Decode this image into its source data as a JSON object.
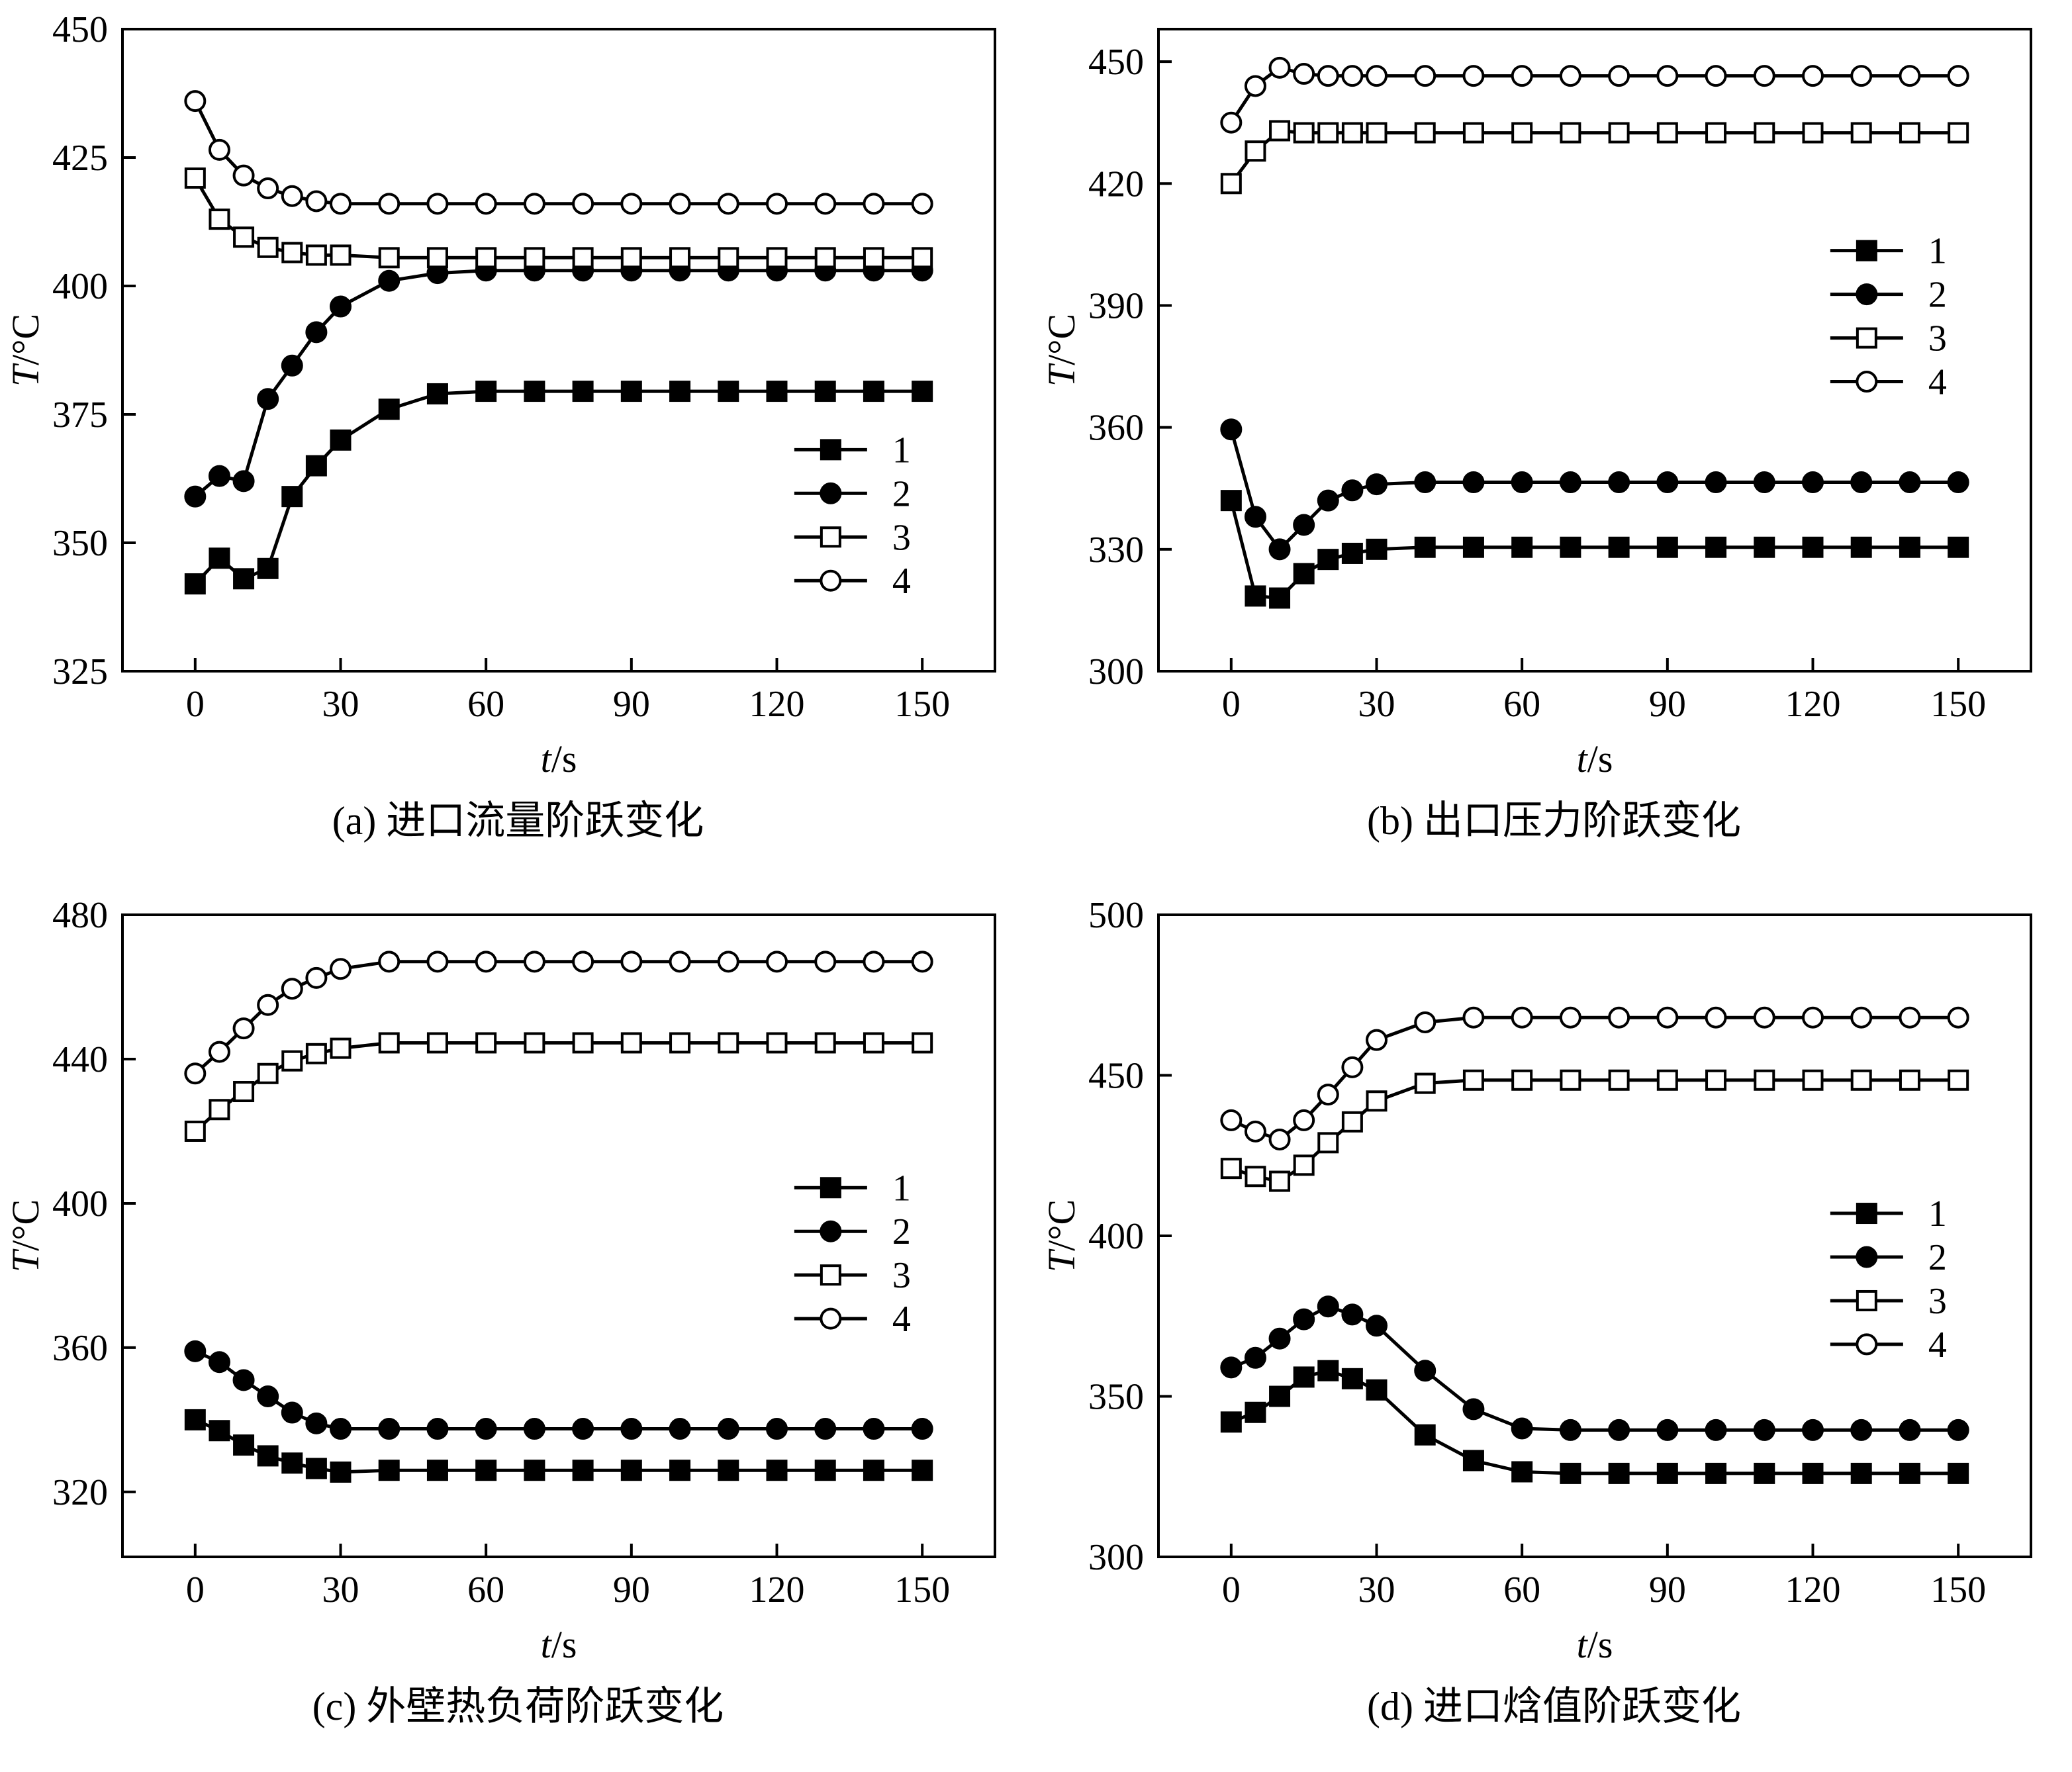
{
  "figure": {
    "background": "#ffffff",
    "ink": "#000000"
  },
  "chart_data": [
    {
      "id": "a",
      "type": "line",
      "caption": "(a) 进口流量阶跃变化",
      "xlabel": "t/s",
      "ylabel": "T/°C",
      "xlim": [
        -15,
        165
      ],
      "ylim": [
        325,
        450
      ],
      "xticks": [
        0,
        30,
        60,
        90,
        120,
        150
      ],
      "yticks": [
        325,
        350,
        375,
        400,
        425,
        450
      ],
      "grid": false,
      "legend": {
        "position": "right-lower",
        "x": 0.77,
        "y": 0.655,
        "dy": 0.068
      },
      "x": [
        0,
        5,
        10,
        15,
        20,
        25,
        30,
        40,
        50,
        60,
        70,
        80,
        90,
        100,
        110,
        120,
        130,
        140,
        150
      ],
      "series": [
        {
          "name": "1",
          "marker": "square-filled",
          "values": [
            342,
            347,
            343,
            345,
            359,
            365,
            370,
            376,
            379,
            379.5,
            379.5,
            379.5,
            379.5,
            379.5,
            379.5,
            379.5,
            379.5,
            379.5,
            379.5
          ]
        },
        {
          "name": "2",
          "marker": "circle-filled",
          "values": [
            359,
            363,
            362,
            378,
            384.5,
            391,
            396,
            401,
            402.5,
            403,
            403,
            403,
            403,
            403,
            403,
            403,
            403,
            403,
            403
          ]
        },
        {
          "name": "3",
          "marker": "square-open",
          "values": [
            421,
            413,
            409.5,
            407.5,
            406.5,
            406,
            406,
            405.5,
            405.5,
            405.5,
            405.5,
            405.5,
            405.5,
            405.5,
            405.5,
            405.5,
            405.5,
            405.5,
            405.5
          ]
        },
        {
          "name": "4",
          "marker": "circle-open",
          "values": [
            436,
            426.5,
            421.5,
            419,
            417.5,
            416.5,
            416,
            416,
            416,
            416,
            416,
            416,
            416,
            416,
            416,
            416,
            416,
            416,
            416
          ]
        }
      ]
    },
    {
      "id": "b",
      "type": "line",
      "caption": "(b) 出口压力阶跃变化",
      "xlabel": "t/s",
      "ylabel": "T/°C",
      "xlim": [
        -15,
        165
      ],
      "ylim": [
        300,
        458
      ],
      "xticks": [
        0,
        30,
        60,
        90,
        120,
        150
      ],
      "yticks": [
        300,
        330,
        360,
        390,
        420,
        450
      ],
      "grid": false,
      "legend": {
        "position": "right-upper",
        "x": 0.77,
        "y": 0.345,
        "dy": 0.068
      },
      "x": [
        0,
        5,
        10,
        15,
        20,
        25,
        30,
        40,
        50,
        60,
        70,
        80,
        90,
        100,
        110,
        120,
        130,
        140,
        150
      ],
      "series": [
        {
          "name": "1",
          "marker": "square-filled",
          "values": [
            342,
            318.5,
            318,
            324,
            327.5,
            329,
            330,
            330.5,
            330.5,
            330.5,
            330.5,
            330.5,
            330.5,
            330.5,
            330.5,
            330.5,
            330.5,
            330.5,
            330.5
          ]
        },
        {
          "name": "2",
          "marker": "circle-filled",
          "values": [
            359.5,
            338,
            330,
            336,
            342,
            344.5,
            346,
            346.5,
            346.5,
            346.5,
            346.5,
            346.5,
            346.5,
            346.5,
            346.5,
            346.5,
            346.5,
            346.5,
            346.5
          ]
        },
        {
          "name": "3",
          "marker": "square-open",
          "values": [
            420,
            428,
            433,
            432.5,
            432.5,
            432.5,
            432.5,
            432.5,
            432.5,
            432.5,
            432.5,
            432.5,
            432.5,
            432.5,
            432.5,
            432.5,
            432.5,
            432.5,
            432.5
          ]
        },
        {
          "name": "4",
          "marker": "circle-open",
          "values": [
            435,
            444,
            448.5,
            447,
            446.5,
            446.5,
            446.5,
            446.5,
            446.5,
            446.5,
            446.5,
            446.5,
            446.5,
            446.5,
            446.5,
            446.5,
            446.5,
            446.5,
            446.5
          ]
        }
      ]
    },
    {
      "id": "c",
      "type": "line",
      "caption": "(c) 外壁热负荷阶跃变化",
      "xlabel": "t/s",
      "ylabel": "T/°C",
      "xlim": [
        -15,
        165
      ],
      "ylim": [
        302,
        480
      ],
      "xticks": [
        0,
        30,
        60,
        90,
        120,
        150
      ],
      "yticks": [
        320,
        360,
        400,
        440,
        480
      ],
      "grid": false,
      "legend": {
        "position": "right-middle",
        "x": 0.77,
        "y": 0.425,
        "dy": 0.068
      },
      "x": [
        0,
        5,
        10,
        15,
        20,
        25,
        30,
        40,
        50,
        60,
        70,
        80,
        90,
        100,
        110,
        120,
        130,
        140,
        150
      ],
      "series": [
        {
          "name": "1",
          "marker": "square-filled",
          "values": [
            340,
            337,
            333,
            330,
            328,
            326.5,
            325.5,
            326,
            326,
            326,
            326,
            326,
            326,
            326,
            326,
            326,
            326,
            326,
            326
          ]
        },
        {
          "name": "2",
          "marker": "circle-filled",
          "values": [
            359,
            356,
            351,
            346.5,
            342,
            339,
            337.5,
            337.5,
            337.5,
            337.5,
            337.5,
            337.5,
            337.5,
            337.5,
            337.5,
            337.5,
            337.5,
            337.5,
            337.5
          ]
        },
        {
          "name": "3",
          "marker": "square-open",
          "values": [
            420,
            426,
            431,
            436,
            439.5,
            441.5,
            443,
            444.5,
            444.5,
            444.5,
            444.5,
            444.5,
            444.5,
            444.5,
            444.5,
            444.5,
            444.5,
            444.5,
            444.5
          ]
        },
        {
          "name": "4",
          "marker": "circle-open",
          "values": [
            436,
            442,
            448.5,
            455,
            459.5,
            462.5,
            465,
            467,
            467,
            467,
            467,
            467,
            467,
            467,
            467,
            467,
            467,
            467,
            467
          ]
        }
      ]
    },
    {
      "id": "d",
      "type": "line",
      "caption": "(d) 进口焓值阶跃变化",
      "xlabel": "t/s",
      "ylabel": "T/°C",
      "xlim": [
        -15,
        165
      ],
      "ylim": [
        300,
        500
      ],
      "xticks": [
        0,
        30,
        60,
        90,
        120,
        150
      ],
      "yticks": [
        300,
        350,
        400,
        450,
        500
      ],
      "grid": false,
      "legend": {
        "position": "right-middle",
        "x": 0.77,
        "y": 0.465,
        "dy": 0.068
      },
      "x": [
        0,
        5,
        10,
        15,
        20,
        25,
        30,
        40,
        50,
        60,
        70,
        80,
        90,
        100,
        110,
        120,
        130,
        140,
        150
      ],
      "series": [
        {
          "name": "1",
          "marker": "square-filled",
          "values": [
            342,
            345,
            350,
            356,
            358,
            355.5,
            352,
            338,
            330,
            326.5,
            326,
            326,
            326,
            326,
            326,
            326,
            326,
            326,
            326
          ]
        },
        {
          "name": "2",
          "marker": "circle-filled",
          "values": [
            359,
            362,
            368,
            374,
            378,
            375.5,
            372,
            358,
            346,
            340,
            339.5,
            339.5,
            339.5,
            339.5,
            339.5,
            339.5,
            339.5,
            339.5,
            339.5
          ]
        },
        {
          "name": "3",
          "marker": "square-open",
          "values": [
            421,
            418.5,
            417,
            422,
            429,
            435.5,
            442,
            447.5,
            448.5,
            448.5,
            448.5,
            448.5,
            448.5,
            448.5,
            448.5,
            448.5,
            448.5,
            448.5,
            448.5
          ]
        },
        {
          "name": "4",
          "marker": "circle-open",
          "values": [
            436,
            432.5,
            430,
            436,
            444,
            452.5,
            461,
            466.5,
            468,
            468,
            468,
            468,
            468,
            468,
            468,
            468,
            468,
            468,
            468
          ]
        }
      ]
    }
  ]
}
